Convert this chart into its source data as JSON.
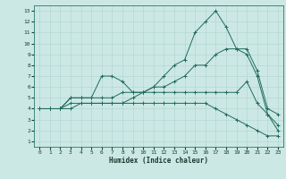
{
  "xlabel": "Humidex (Indice chaleur)",
  "line_color": "#1f6b5c",
  "bg_color": "#cce8e4",
  "grid_color": "#aed4cf",
  "xlim": [
    -0.5,
    23.5
  ],
  "ylim": [
    0.5,
    13.5
  ],
  "xticks": [
    0,
    1,
    2,
    3,
    4,
    5,
    6,
    7,
    8,
    9,
    10,
    11,
    12,
    13,
    14,
    15,
    16,
    17,
    18,
    19,
    20,
    21,
    22,
    23
  ],
  "yticks": [
    1,
    2,
    3,
    4,
    5,
    6,
    7,
    8,
    9,
    10,
    11,
    12,
    13
  ],
  "series": [
    {
      "x": [
        0,
        1,
        2,
        3,
        4,
        5,
        6,
        7,
        8,
        9,
        10,
        11,
        12,
        13,
        14,
        15,
        16,
        17,
        18,
        19,
        20,
        21,
        22,
        23
      ],
      "y": [
        4,
        4,
        4,
        4.5,
        4.5,
        4.5,
        4.5,
        4.5,
        4.5,
        5,
        5.5,
        6,
        7,
        8,
        8.5,
        11,
        12,
        13,
        11.5,
        9.5,
        9,
        7,
        3.5,
        2
      ]
    },
    {
      "x": [
        0,
        1,
        2,
        3,
        4,
        5,
        6,
        7,
        8,
        9,
        10,
        11,
        12,
        13,
        14,
        15,
        16,
        17,
        18,
        19,
        20,
        21,
        22,
        23
      ],
      "y": [
        4,
        4,
        4,
        5,
        5,
        5,
        5,
        5,
        5.5,
        5.5,
        5.5,
        6,
        6,
        6.5,
        7,
        8,
        8,
        9,
        9.5,
        9.5,
        9.5,
        7.5,
        4,
        3.5
      ]
    },
    {
      "x": [
        0,
        1,
        2,
        3,
        4,
        5,
        6,
        7,
        8,
        9,
        10,
        11,
        12,
        13,
        14,
        15,
        16,
        17,
        18,
        19,
        20,
        21,
        22,
        23
      ],
      "y": [
        4,
        4,
        4,
        5,
        5,
        5,
        7,
        7,
        6.5,
        5.5,
        5.5,
        5.5,
        5.5,
        5.5,
        5.5,
        5.5,
        5.5,
        5.5,
        5.5,
        5.5,
        6.5,
        4.5,
        3.5,
        2.5
      ]
    },
    {
      "x": [
        0,
        1,
        2,
        3,
        4,
        5,
        6,
        7,
        8,
        9,
        10,
        11,
        12,
        13,
        14,
        15,
        16,
        17,
        18,
        19,
        20,
        21,
        22,
        23
      ],
      "y": [
        4,
        4,
        4,
        4,
        4.5,
        4.5,
        4.5,
        4.5,
        4.5,
        4.5,
        4.5,
        4.5,
        4.5,
        4.5,
        4.5,
        4.5,
        4.5,
        4,
        3.5,
        3,
        2.5,
        2,
        1.5,
        1.5
      ]
    }
  ]
}
